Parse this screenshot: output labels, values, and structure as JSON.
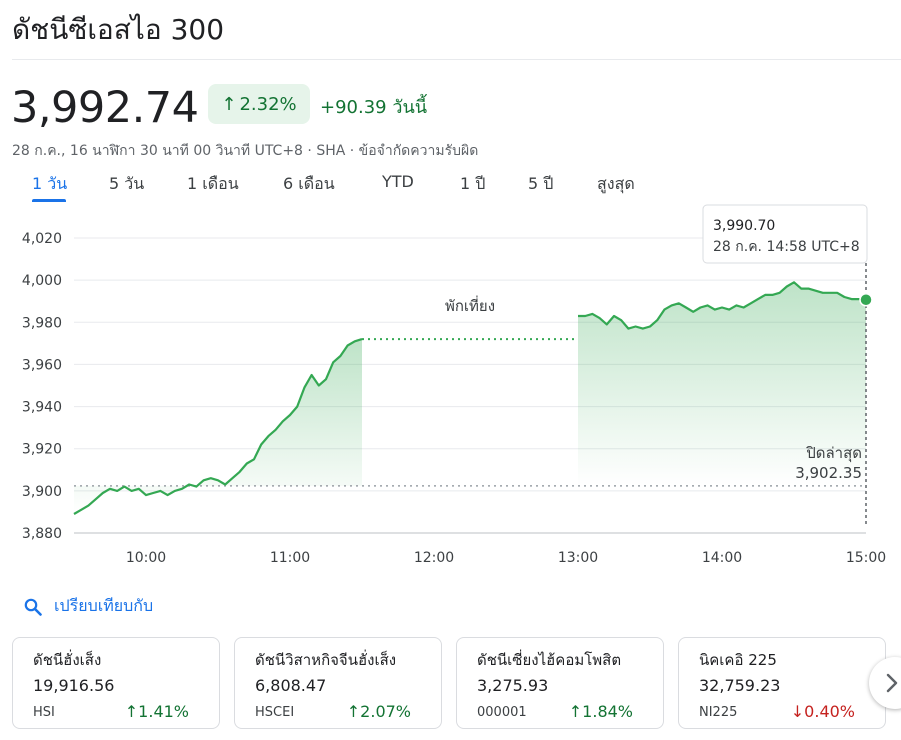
{
  "header": {
    "title": "ดัชนีซีเอสไอ 300"
  },
  "quote": {
    "price": "3,992.74",
    "percent_change": "2.32%",
    "direction": "up",
    "change_today": "+90.39 วันนี้",
    "meta": "28 ก.ค., 16 นาฬิกา 30 นาที 00 วินาที UTC+8 · SHA · ข้อจำกัดความรับผิด"
  },
  "tabs": [
    {
      "label": "1 วัน",
      "active": true
    },
    {
      "label": "5 วัน",
      "active": false
    },
    {
      "label": "1 เดือน",
      "active": false
    },
    {
      "label": "6 เดือน",
      "active": false
    },
    {
      "label": "YTD",
      "active": false
    },
    {
      "label": "1 ปี",
      "active": false
    },
    {
      "label": "5 ปี",
      "active": false
    },
    {
      "label": "สูงสุด",
      "active": false
    }
  ],
  "chart_data": {
    "type": "area",
    "title": "",
    "xlabel": "",
    "ylabel": "",
    "x_ticks": [
      "10:00",
      "11:00",
      "12:00",
      "13:00",
      "14:00",
      "15:00"
    ],
    "y_ticks": [
      "3,880",
      "3,900",
      "3,920",
      "3,940",
      "3,960",
      "3,980",
      "4,000",
      "4,020"
    ],
    "ylim": [
      3880,
      4020
    ],
    "grid": true,
    "line_color": "#34a853",
    "break_label": "พักเที่ยง",
    "previous_close_label": "ปิดล่าสุด",
    "previous_close_value_text": "3,902.35",
    "previous_close": 3902.35,
    "tooltip": {
      "value": "3,990.70",
      "time": "28 ก.ค. 14:58 UTC+8"
    },
    "morning": {
      "x": [
        "09:30",
        "09:33",
        "09:36",
        "09:39",
        "09:42",
        "09:45",
        "09:48",
        "09:51",
        "09:54",
        "09:57",
        "10:00",
        "10:03",
        "10:06",
        "10:09",
        "10:12",
        "10:15",
        "10:18",
        "10:21",
        "10:24",
        "10:27",
        "10:30",
        "10:33",
        "10:36",
        "10:39",
        "10:42",
        "10:45",
        "10:48",
        "10:51",
        "10:54",
        "10:57",
        "11:00",
        "11:03",
        "11:06",
        "11:09",
        "11:12",
        "11:15",
        "11:18",
        "11:21",
        "11:24",
        "11:27",
        "11:30"
      ],
      "y": [
        3889,
        3891,
        3893,
        3896,
        3899,
        3901,
        3900,
        3902,
        3900,
        3901,
        3898,
        3899,
        3900,
        3898,
        3900,
        3901,
        3903,
        3902,
        3905,
        3906,
        3905,
        3903,
        3906,
        3909,
        3913,
        3915,
        3922,
        3926,
        3929,
        3933,
        3936,
        3940,
        3949,
        3955,
        3950,
        3953,
        3961,
        3964,
        3969,
        3971,
        3972
      ]
    },
    "afternoon": {
      "x": [
        "13:00",
        "13:03",
        "13:06",
        "13:09",
        "13:12",
        "13:15",
        "13:18",
        "13:21",
        "13:24",
        "13:27",
        "13:30",
        "13:33",
        "13:36",
        "13:39",
        "13:42",
        "13:45",
        "13:48",
        "13:51",
        "13:54",
        "13:57",
        "14:00",
        "14:03",
        "14:06",
        "14:09",
        "14:12",
        "14:15",
        "14:18",
        "14:21",
        "14:24",
        "14:27",
        "14:30",
        "14:33",
        "14:36",
        "14:39",
        "14:42",
        "14:45",
        "14:48",
        "14:51",
        "14:54",
        "14:57",
        "15:00"
      ],
      "y": [
        3983,
        3983,
        3984,
        3982,
        3979,
        3983,
        3981,
        3977,
        3978,
        3977,
        3978,
        3981,
        3986,
        3988,
        3989,
        3987,
        3985,
        3987,
        3988,
        3986,
        3987,
        3986,
        3988,
        3987,
        3989,
        3991,
        3993,
        3993,
        3994,
        3997,
        3999,
        3996,
        3996,
        3995,
        3994,
        3994,
        3994,
        3992,
        3991,
        3991,
        3990.7
      ]
    }
  },
  "compare": {
    "label": "เปรียบเทียบกับ"
  },
  "related": [
    {
      "name": "ดัชนีฮั่งเส็ง",
      "value": "19,916.56",
      "symbol": "HSI",
      "change": "1.41%",
      "direction": "up"
    },
    {
      "name": "ดัชนีวิสาหกิจจีนฮั่งเส็ง",
      "value": "6,808.47",
      "symbol": "HSCEI",
      "change": "2.07%",
      "direction": "up"
    },
    {
      "name": "ดัชนีเซี่ยงไฮ้คอมโพสิต",
      "value": "3,275.93",
      "symbol": "000001",
      "change": "1.84%",
      "direction": "up"
    },
    {
      "name": "นิคเคอิ 225",
      "value": "32,759.23",
      "symbol": "NI225",
      "change": "0.40%",
      "direction": "down"
    }
  ]
}
